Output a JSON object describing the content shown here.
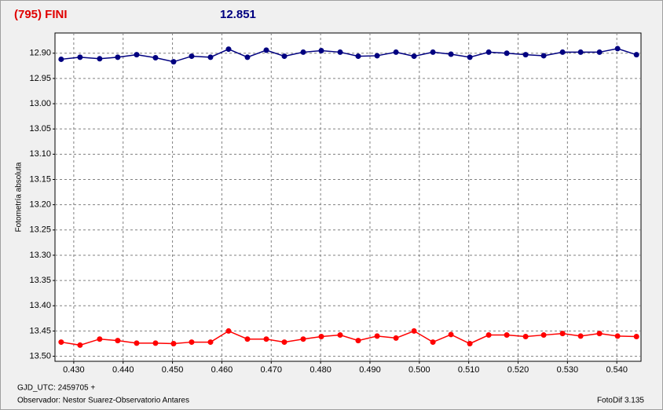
{
  "chart_data": {
    "type": "line",
    "title": "(795) FINI",
    "subtitle": "12.851",
    "y_label": "Fotometría absoluta",
    "x_label": "GJD_UTC: 2459705 +",
    "observer": "Observador: Nestor Suarez-Observatorio Antares",
    "software": "FotoDif 3.135",
    "y_inverted": true,
    "grid": true,
    "xlim": [
      0.4262,
      0.5449
    ],
    "ylim": [
      12.86,
      13.51
    ],
    "xticks": [
      {
        "value": 0.43,
        "label": "0.430"
      },
      {
        "value": 0.44,
        "label": "0.440"
      },
      {
        "value": 0.45,
        "label": "0.450"
      },
      {
        "value": 0.46,
        "label": "0.460"
      },
      {
        "value": 0.47,
        "label": "0.470"
      },
      {
        "value": 0.48,
        "label": "0.480"
      },
      {
        "value": 0.49,
        "label": "0.490"
      },
      {
        "value": 0.5,
        "label": "0.500"
      },
      {
        "value": 0.51,
        "label": "0.510"
      },
      {
        "value": 0.52,
        "label": "0.520"
      },
      {
        "value": 0.53,
        "label": "0.530"
      },
      {
        "value": 0.54,
        "label": "0.540"
      }
    ],
    "yticks": [
      {
        "value": 12.9,
        "label": "12.90"
      },
      12.95,
      {
        "value": 13.0,
        "label": "13.00"
      },
      13.05,
      {
        "value": 13.1,
        "label": "13.10"
      },
      13.15,
      {
        "value": 13.2,
        "label": "13.20"
      },
      13.25,
      {
        "value": 13.3,
        "label": "13.30"
      },
      13.35,
      {
        "value": 13.4,
        "label": "13.40"
      },
      13.45,
      {
        "value": 13.5,
        "label": "13.50"
      }
    ],
    "x": [
      0.42745,
      0.43127,
      0.43525,
      0.43891,
      0.44274,
      0.44656,
      0.45022,
      0.45388,
      0.4577,
      0.46136,
      0.46518,
      0.469,
      0.47266,
      0.47648,
      0.48014,
      0.48396,
      0.48762,
      0.49145,
      0.49527,
      0.49893,
      0.50275,
      0.50641,
      0.51023,
      0.51405,
      0.51771,
      0.52153,
      0.52519,
      0.52901,
      0.53267,
      0.53649,
      0.54015,
      0.54398
    ],
    "series": [
      {
        "color": "#000080",
        "values": [
          12.912,
          12.908,
          12.911,
          12.908,
          12.903,
          12.909,
          12.917,
          12.906,
          12.908,
          12.892,
          12.908,
          12.894,
          12.906,
          12.898,
          12.895,
          12.898,
          12.906,
          12.905,
          12.898,
          12.906,
          12.898,
          12.902,
          12.908,
          12.898,
          12.9,
          12.903,
          12.905,
          12.898,
          12.898,
          12.898,
          12.891,
          12.903
        ]
      },
      {
        "color": "#ff0000",
        "values": [
          13.472,
          13.478,
          13.466,
          13.469,
          13.474,
          13.474,
          13.475,
          13.472,
          13.472,
          13.45,
          13.466,
          13.466,
          13.472,
          13.466,
          13.461,
          13.458,
          13.469,
          13.46,
          13.464,
          13.45,
          13.472,
          13.457,
          13.475,
          13.458,
          13.458,
          13.461,
          13.458,
          13.455,
          13.46,
          13.455,
          13.46,
          13.461
        ]
      }
    ]
  }
}
